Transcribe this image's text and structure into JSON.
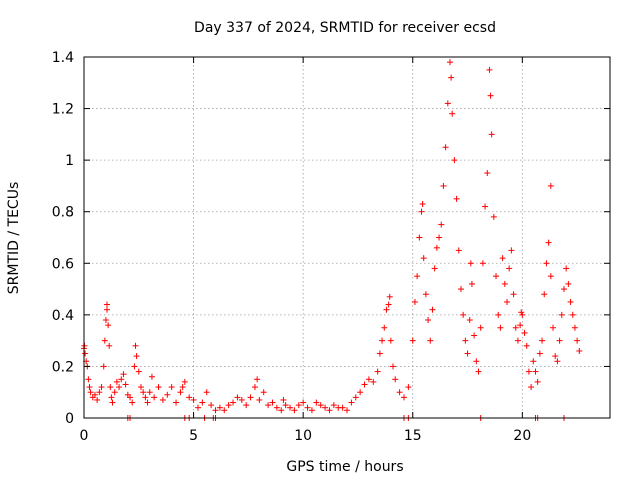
{
  "chart_data": {
    "type": "scatter",
    "title": "Day 337 of 2024, SRMTID for receiver ecsd",
    "xlabel": "GPS time / hours",
    "ylabel": "SRMTID / TECUs",
    "xlim": [
      0,
      24
    ],
    "ylim": [
      0,
      1.4
    ],
    "xticks": [
      0,
      5,
      10,
      15,
      20
    ],
    "yticks": [
      0,
      0.2,
      0.4,
      0.6,
      0.8,
      1,
      1.2,
      1.4
    ],
    "xtick_labels": [
      "0",
      "5",
      "10",
      "15",
      "20"
    ],
    "ytick_labels": [
      "0",
      "0.2",
      "0.4",
      "0.6",
      "0.8",
      "1",
      "1.2",
      "1.4"
    ],
    "grid": true,
    "marker": "+",
    "color": "#ff0000",
    "series": [
      {
        "name": "SRMTID",
        "points": [
          [
            0.0,
            0.27
          ],
          [
            0.05,
            0.25
          ],
          [
            0.1,
            0.22
          ],
          [
            0.15,
            0.2
          ],
          [
            0.2,
            0.15
          ],
          [
            0.25,
            0.12
          ],
          [
            0.3,
            0.1
          ],
          [
            0.4,
            0.08
          ],
          [
            0.5,
            0.09
          ],
          [
            0.6,
            0.07
          ],
          [
            0.7,
            0.1
          ],
          [
            0.8,
            0.12
          ],
          [
            0.9,
            0.2
          ],
          [
            0.95,
            0.3
          ],
          [
            1.0,
            0.38
          ],
          [
            1.05,
            0.42
          ],
          [
            1.1,
            0.36
          ],
          [
            1.15,
            0.28
          ],
          [
            1.2,
            0.12
          ],
          [
            1.25,
            0.08
          ],
          [
            1.3,
            0.06
          ],
          [
            1.4,
            0.1
          ],
          [
            1.5,
            0.14
          ],
          [
            1.6,
            0.12
          ],
          [
            1.7,
            0.15
          ],
          [
            1.8,
            0.17
          ],
          [
            1.9,
            0.13
          ],
          [
            2.0,
            0.09
          ],
          [
            2.1,
            0.08
          ],
          [
            2.2,
            0.06
          ],
          [
            2.3,
            0.2
          ],
          [
            2.35,
            0.28
          ],
          [
            2.4,
            0.24
          ],
          [
            2.5,
            0.18
          ],
          [
            2.6,
            0.12
          ],
          [
            2.7,
            0.1
          ],
          [
            2.8,
            0.08
          ],
          [
            2.9,
            0.06
          ],
          [
            3.0,
            0.1
          ],
          [
            3.2,
            0.08
          ],
          [
            3.4,
            0.12
          ],
          [
            3.6,
            0.07
          ],
          [
            3.8,
            0.09
          ],
          [
            4.0,
            0.12
          ],
          [
            4.2,
            0.06
          ],
          [
            4.4,
            0.1
          ],
          [
            4.6,
            0.14
          ],
          [
            4.8,
            0.08
          ],
          [
            5.0,
            0.07
          ],
          [
            5.2,
            0.04
          ],
          [
            5.4,
            0.06
          ],
          [
            5.6,
            0.1
          ],
          [
            5.8,
            0.05
          ],
          [
            6.0,
            0.03
          ],
          [
            6.2,
            0.04
          ],
          [
            6.4,
            0.03
          ],
          [
            6.6,
            0.05
          ],
          [
            6.8,
            0.06
          ],
          [
            7.0,
            0.08
          ],
          [
            7.2,
            0.07
          ],
          [
            7.4,
            0.05
          ],
          [
            7.6,
            0.08
          ],
          [
            7.8,
            0.12
          ],
          [
            8.0,
            0.07
          ],
          [
            8.2,
            0.1
          ],
          [
            8.4,
            0.05
          ],
          [
            8.6,
            0.06
          ],
          [
            8.8,
            0.04
          ],
          [
            9.0,
            0.03
          ],
          [
            9.2,
            0.05
          ],
          [
            9.4,
            0.04
          ],
          [
            9.6,
            0.03
          ],
          [
            9.8,
            0.05
          ],
          [
            10.0,
            0.06
          ],
          [
            10.2,
            0.04
          ],
          [
            10.4,
            0.03
          ],
          [
            10.6,
            0.06
          ],
          [
            10.8,
            0.05
          ],
          [
            11.0,
            0.04
          ],
          [
            11.2,
            0.03
          ],
          [
            11.4,
            0.05
          ],
          [
            11.6,
            0.04
          ],
          [
            11.8,
            0.04
          ],
          [
            12.0,
            0.03
          ],
          [
            12.2,
            0.06
          ],
          [
            12.4,
            0.08
          ],
          [
            12.6,
            0.1
          ],
          [
            12.8,
            0.13
          ],
          [
            13.0,
            0.15
          ],
          [
            13.2,
            0.14
          ],
          [
            13.4,
            0.18
          ],
          [
            13.5,
            0.25
          ],
          [
            13.6,
            0.3
          ],
          [
            13.7,
            0.35
          ],
          [
            13.8,
            0.42
          ],
          [
            13.9,
            0.44
          ],
          [
            14.0,
            0.3
          ],
          [
            14.1,
            0.2
          ],
          [
            14.2,
            0.15
          ],
          [
            14.4,
            0.1
          ],
          [
            14.6,
            0.08
          ],
          [
            14.8,
            0.12
          ],
          [
            15.0,
            0.3
          ],
          [
            15.1,
            0.45
          ],
          [
            15.2,
            0.55
          ],
          [
            15.3,
            0.7
          ],
          [
            15.4,
            0.8
          ],
          [
            15.5,
            0.62
          ],
          [
            15.6,
            0.48
          ],
          [
            15.7,
            0.38
          ],
          [
            15.8,
            0.3
          ],
          [
            15.9,
            0.42
          ],
          [
            16.0,
            0.58
          ],
          [
            16.1,
            0.66
          ],
          [
            16.2,
            0.7
          ],
          [
            16.3,
            0.75
          ],
          [
            16.4,
            0.9
          ],
          [
            16.5,
            1.05
          ],
          [
            16.6,
            1.22
          ],
          [
            16.7,
            1.38
          ],
          [
            16.75,
            1.32
          ],
          [
            16.8,
            1.18
          ],
          [
            16.9,
            1.0
          ],
          [
            17.0,
            0.85
          ],
          [
            17.1,
            0.65
          ],
          [
            17.2,
            0.5
          ],
          [
            17.3,
            0.4
          ],
          [
            17.4,
            0.3
          ],
          [
            17.5,
            0.25
          ],
          [
            17.6,
            0.38
          ],
          [
            17.7,
            0.52
          ],
          [
            17.8,
            0.32
          ],
          [
            17.9,
            0.22
          ],
          [
            18.0,
            0.18
          ],
          [
            18.1,
            0.35
          ],
          [
            18.2,
            0.6
          ],
          [
            18.3,
            0.82
          ],
          [
            18.4,
            0.95
          ],
          [
            18.5,
            1.35
          ],
          [
            18.55,
            1.25
          ],
          [
            18.6,
            1.1
          ],
          [
            18.7,
            0.78
          ],
          [
            18.8,
            0.55
          ],
          [
            18.9,
            0.4
          ],
          [
            19.0,
            0.35
          ],
          [
            19.1,
            0.62
          ],
          [
            19.2,
            0.52
          ],
          [
            19.3,
            0.45
          ],
          [
            19.4,
            0.58
          ],
          [
            19.5,
            0.65
          ],
          [
            19.6,
            0.48
          ],
          [
            19.7,
            0.35
          ],
          [
            19.8,
            0.3
          ],
          [
            19.9,
            0.36
          ],
          [
            20.0,
            0.4
          ],
          [
            20.1,
            0.33
          ],
          [
            20.2,
            0.28
          ],
          [
            20.3,
            0.18
          ],
          [
            20.4,
            0.12
          ],
          [
            20.5,
            0.22
          ],
          [
            20.6,
            0.18
          ],
          [
            20.7,
            0.14
          ],
          [
            20.8,
            0.25
          ],
          [
            20.9,
            0.3
          ],
          [
            21.0,
            0.48
          ],
          [
            21.1,
            0.6
          ],
          [
            21.2,
            0.68
          ],
          [
            21.3,
            0.55
          ],
          [
            21.4,
            0.35
          ],
          [
            21.5,
            0.24
          ],
          [
            21.6,
            0.22
          ],
          [
            21.7,
            0.3
          ],
          [
            21.8,
            0.4
          ],
          [
            21.9,
            0.5
          ],
          [
            22.0,
            0.58
          ],
          [
            22.1,
            0.52
          ],
          [
            22.2,
            0.45
          ],
          [
            22.3,
            0.4
          ],
          [
            22.4,
            0.35
          ],
          [
            22.5,
            0.3
          ],
          [
            22.6,
            0.26
          ],
          [
            21.3,
            0.9
          ],
          [
            0.02,
            0.28
          ],
          [
            1.05,
            0.44
          ],
          [
            3.1,
            0.16
          ],
          [
            4.5,
            0.12
          ],
          [
            7.9,
            0.15
          ],
          [
            9.1,
            0.07
          ],
          [
            13.95,
            0.47
          ],
          [
            15.45,
            0.83
          ],
          [
            17.65,
            0.6
          ],
          [
            19.95,
            0.41
          ],
          [
            2.0,
            0.0
          ],
          [
            2.1,
            0.0
          ],
          [
            4.6,
            0.0
          ],
          [
            4.8,
            0.0
          ],
          [
            5.5,
            0.0
          ],
          [
            5.9,
            0.0
          ],
          [
            6.0,
            0.0
          ],
          [
            14.6,
            0.0
          ],
          [
            14.8,
            0.0
          ],
          [
            18.1,
            0.0
          ],
          [
            20.6,
            0.0
          ],
          [
            20.7,
            0.0
          ],
          [
            21.9,
            0.0
          ]
        ]
      }
    ]
  }
}
